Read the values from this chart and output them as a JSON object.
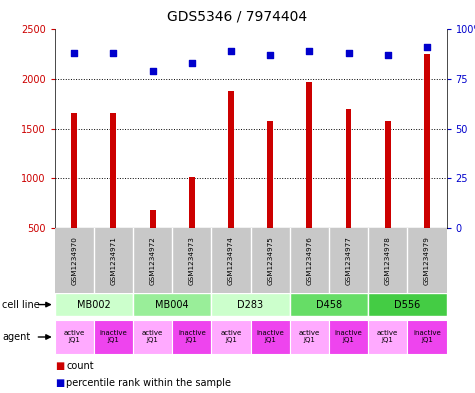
{
  "title": "GDS5346 / 7974404",
  "samples": [
    "GSM1234970",
    "GSM1234971",
    "GSM1234972",
    "GSM1234973",
    "GSM1234974",
    "GSM1234975",
    "GSM1234976",
    "GSM1234977",
    "GSM1234978",
    "GSM1234979"
  ],
  "counts": [
    1660,
    1660,
    680,
    1010,
    1880,
    1580,
    1970,
    1700,
    1580,
    2250
  ],
  "percentiles": [
    88,
    88,
    79,
    83,
    89,
    87,
    89,
    88,
    87,
    91
  ],
  "cell_lines": [
    {
      "label": "MB002",
      "start": 0,
      "end": 2,
      "color": "#ccffcc"
    },
    {
      "label": "MB004",
      "start": 2,
      "end": 4,
      "color": "#99ee99"
    },
    {
      "label": "D283",
      "start": 4,
      "end": 6,
      "color": "#ccffcc"
    },
    {
      "label": "D458",
      "start": 6,
      "end": 8,
      "color": "#66dd66"
    },
    {
      "label": "D556",
      "start": 8,
      "end": 10,
      "color": "#44cc44"
    }
  ],
  "agent_colors": [
    "#ffaaff",
    "#ee44ee"
  ],
  "agent_labels": [
    "active\nJQ1",
    "inactive\nJQ1"
  ],
  "bar_color": "#cc0000",
  "dot_color": "#0000cc",
  "left_ylim": [
    500,
    2500
  ],
  "left_yticks": [
    500,
    1000,
    1500,
    2000,
    2500
  ],
  "right_ylim": [
    0,
    100
  ],
  "right_yticks": [
    0,
    25,
    50,
    75,
    100
  ],
  "right_yticklabels": [
    "0",
    "25",
    "50",
    "75",
    "100%"
  ],
  "count_color": "#cc0000",
  "percentile_color": "#0000cc",
  "bg_color": "#ffffff",
  "title_fontsize": 10,
  "axis_fontsize": 7,
  "bar_width": 0.15
}
